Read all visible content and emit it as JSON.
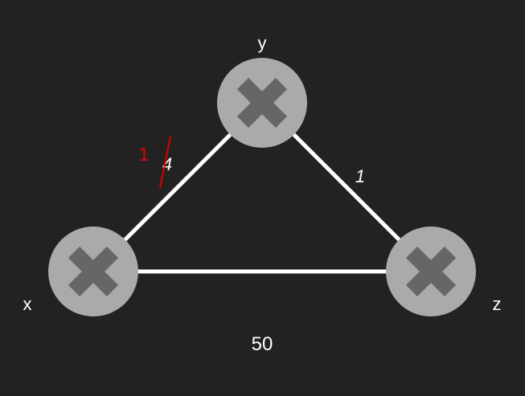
{
  "colors": {
    "background": "#222222",
    "edge": "#ffffff",
    "node_fill": "#aaaaaa",
    "node_glyph": "#666666",
    "label": "#ffffff",
    "annotation": "#dd0000"
  },
  "nodes": {
    "x": {
      "label": "x",
      "icon": "router-x-icon"
    },
    "y": {
      "label": "y",
      "icon": "router-x-icon"
    },
    "z": {
      "label": "z",
      "icon": "router-x-icon"
    }
  },
  "edges": {
    "xy": {
      "from": "x",
      "to": "y",
      "cost": "4"
    },
    "yz": {
      "from": "y",
      "to": "z",
      "cost": "1"
    },
    "xz": {
      "from": "x",
      "to": "z",
      "cost": "50"
    }
  },
  "annotation": {
    "new_cost": "1"
  }
}
